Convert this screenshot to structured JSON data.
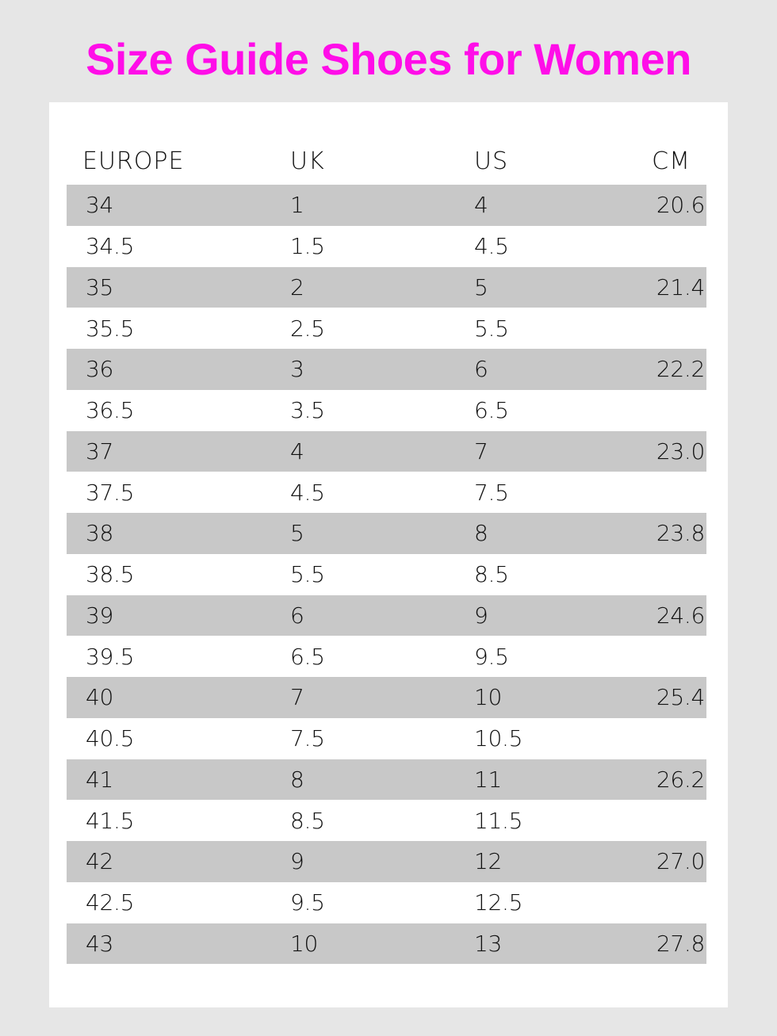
{
  "title": "Size Guide Shoes for Women",
  "colors": {
    "title": "#ff0de8",
    "background": "#e6e6e6",
    "card": "#ffffff",
    "stripe": "#c8c8c8"
  },
  "table": {
    "headers": [
      "EUROPE",
      "UK",
      "US",
      "CM"
    ],
    "rows": [
      [
        "34",
        "1",
        "4",
        "20.6"
      ],
      [
        "34.5",
        "1.5",
        "4.5",
        ""
      ],
      [
        "35",
        "2",
        "5",
        "21.4"
      ],
      [
        "35.5",
        "2.5",
        "5.5",
        ""
      ],
      [
        "36",
        "3",
        "6",
        "22.2"
      ],
      [
        "36.5",
        "3.5",
        "6.5",
        ""
      ],
      [
        "37",
        "4",
        "7",
        "23.0"
      ],
      [
        "37.5",
        "4.5",
        "7.5",
        ""
      ],
      [
        "38",
        "5",
        "8",
        "23.8"
      ],
      [
        "38.5",
        "5.5",
        "8.5",
        ""
      ],
      [
        "39",
        "6",
        "9",
        "24.6"
      ],
      [
        "39.5",
        "6.5",
        "9.5",
        ""
      ],
      [
        "40",
        "7",
        "10",
        "25.4"
      ],
      [
        "40.5",
        "7.5",
        "10.5",
        ""
      ],
      [
        "41",
        "8",
        "11",
        "26.2"
      ],
      [
        "41.5",
        "8.5",
        "11.5",
        ""
      ],
      [
        "42",
        "9",
        "12",
        "27.0"
      ],
      [
        "42.5",
        "9.5",
        "12.5",
        ""
      ],
      [
        "43",
        "10",
        "13",
        "27.8"
      ]
    ]
  }
}
